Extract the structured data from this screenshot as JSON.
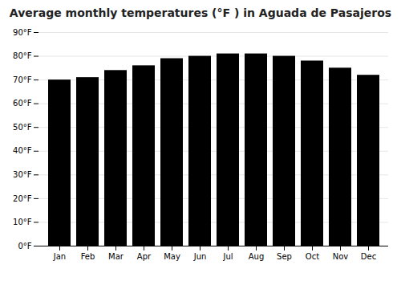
{
  "chart_data": {
    "type": "bar",
    "title": "Average monthly temperatures (°F ) in Aguada de Pasajeros",
    "categories": [
      "Jan",
      "Feb",
      "Mar",
      "Apr",
      "May",
      "Jun",
      "Jul",
      "Aug",
      "Sep",
      "Oct",
      "Nov",
      "Dec"
    ],
    "values": [
      70,
      71,
      74,
      76,
      79,
      80,
      81,
      81,
      80,
      78,
      75,
      72
    ],
    "ylim": [
      0,
      90
    ],
    "yticks": [
      {
        "value": 0,
        "label": "0°F"
      },
      {
        "value": 10,
        "label": "10°F"
      },
      {
        "value": 20,
        "label": "20°F"
      },
      {
        "value": 30,
        "label": "30°F"
      },
      {
        "value": 40,
        "label": "40°F"
      },
      {
        "value": 50,
        "label": "50°F"
      },
      {
        "value": 60,
        "label": "60°F"
      },
      {
        "value": 70,
        "label": "70°F"
      },
      {
        "value": 80,
        "label": "80°F"
      },
      {
        "value": 90,
        "label": "90°F"
      }
    ],
    "grid": true
  }
}
